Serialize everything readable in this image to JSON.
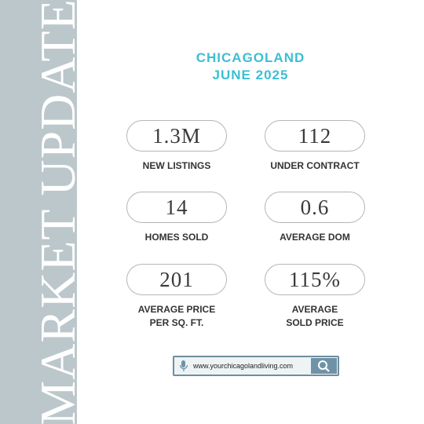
{
  "sidebar": {
    "title": "MARKET UPDATE"
  },
  "header": {
    "title": "CHICAGOLAND",
    "subtitle": "JUNE 2025"
  },
  "stats": [
    {
      "value": "1.3M",
      "label": [
        "NEW LISTINGS"
      ]
    },
    {
      "value": 112,
      "label": [
        "UNDER CONTRACT"
      ]
    },
    {
      "value": 14,
      "label": [
        "HOMES SOLD"
      ]
    },
    {
      "value": 0.6,
      "label": [
        "AVERAGE DOM"
      ]
    },
    {
      "value": 201,
      "label": [
        "AVERAGE PRICE",
        "PER SQ. FT."
      ]
    },
    {
      "value": "115%",
      "label": [
        "AVERAGE",
        "SOLD PRICE"
      ]
    }
  ],
  "search": {
    "url": "www.yourchicagolandliving.com"
  }
}
